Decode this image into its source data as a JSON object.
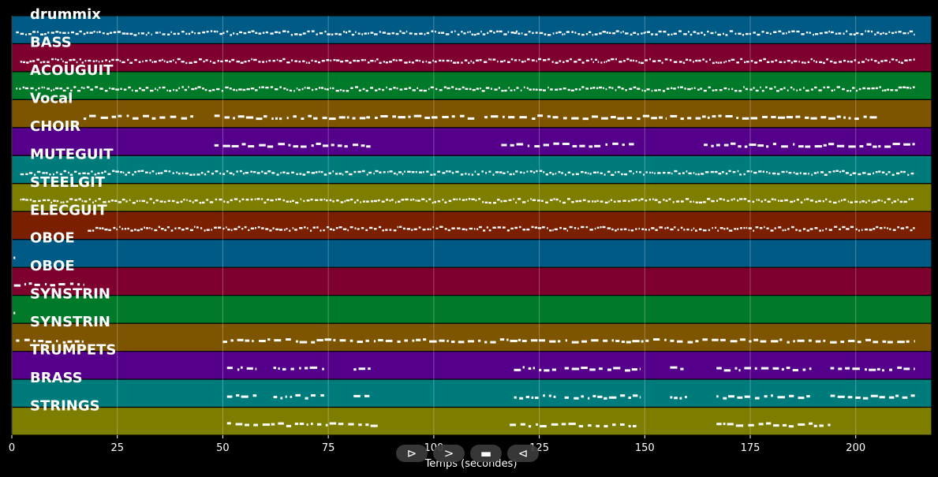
{
  "chart_data": {
    "type": "piano-roll",
    "xlabel": "Temps (secondes)",
    "xlim": [
      0,
      218
    ],
    "x_ticks": [
      0,
      25,
      50,
      75,
      100,
      125,
      150,
      175,
      200
    ],
    "grid": true,
    "tracks": [
      {
        "name": "drummix",
        "color": "#005a86",
        "activity": [
          [
            1,
            33
          ],
          [
            34,
            50
          ],
          [
            50,
            120
          ],
          [
            119,
            150
          ],
          [
            150,
            200
          ],
          [
            200,
            214
          ]
        ],
        "style": "dense"
      },
      {
        "name": "BASS",
        "color": "#7d002d",
        "activity": [
          [
            2,
            214
          ]
        ],
        "style": "dense"
      },
      {
        "name": "ACOUGUIT",
        "color": "#007a28",
        "activity": [
          [
            1,
            214
          ]
        ],
        "style": "dense"
      },
      {
        "name": "Vocal",
        "color": "#7d5400",
        "activity": [
          [
            17,
            43
          ],
          [
            48,
            84
          ],
          [
            84,
            110
          ],
          [
            112,
            155
          ],
          [
            156,
            205
          ]
        ],
        "style": "phrases"
      },
      {
        "name": "CHOIR",
        "color": "#55008a",
        "activity": [
          [
            48,
            85
          ],
          [
            116,
            148
          ],
          [
            164,
            214
          ]
        ],
        "style": "phrases"
      },
      {
        "name": "MUTEGUIT",
        "color": "#007b7b",
        "activity": [
          [
            2,
            214
          ]
        ],
        "style": "dense"
      },
      {
        "name": "STEELGIT",
        "color": "#7d7d00",
        "activity": [
          [
            2,
            214
          ]
        ],
        "style": "dense"
      },
      {
        "name": "ELECGUIT",
        "color": "#7a1f00",
        "activity": [
          [
            18,
            214
          ]
        ],
        "style": "dense"
      },
      {
        "name": "OBOE",
        "color": "#005a86",
        "activity": [
          [
            0.4,
            0.8
          ]
        ],
        "style": "phrases"
      },
      {
        "name": "OBOE",
        "color": "#7d002d",
        "activity": [
          [
            0.5,
            17
          ]
        ],
        "style": "phrases"
      },
      {
        "name": "SYNSTRIN",
        "color": "#007a28",
        "activity": [
          [
            0.4,
            0.8
          ]
        ],
        "style": "phrases"
      },
      {
        "name": "SYNSTRIN",
        "color": "#7d5400",
        "activity": [
          [
            1,
            17
          ],
          [
            50,
            120
          ],
          [
            120,
            214
          ]
        ],
        "style": "phrases"
      },
      {
        "name": "TRUMPETS",
        "color": "#55008a",
        "activity": [
          [
            51,
            58
          ],
          [
            62,
            74
          ],
          [
            81,
            85
          ],
          [
            119,
            129
          ],
          [
            131,
            149
          ],
          [
            156,
            160
          ],
          [
            167,
            190
          ],
          [
            194,
            214
          ]
        ],
        "style": "phrases"
      },
      {
        "name": "BRASS",
        "color": "#007b7b",
        "activity": [
          [
            51,
            58
          ],
          [
            62,
            74
          ],
          [
            81,
            85
          ],
          [
            119,
            129
          ],
          [
            131,
            149
          ],
          [
            156,
            160
          ],
          [
            167,
            190
          ],
          [
            194,
            214
          ]
        ],
        "style": "phrases"
      },
      {
        "name": "STRINGS",
        "color": "#7d7d00",
        "activity": [
          [
            51,
            87
          ],
          [
            118,
            148
          ],
          [
            167,
            194
          ]
        ],
        "style": "phrases"
      }
    ]
  },
  "controls": {
    "play_symbol": "⊳",
    "forward_symbol": ">",
    "stop_symbol": "▬",
    "back_symbol": "⊲"
  }
}
